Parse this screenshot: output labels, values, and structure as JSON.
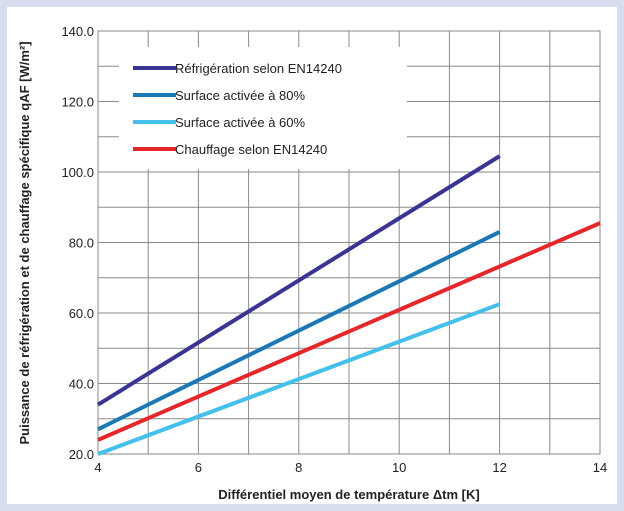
{
  "chart_data": {
    "type": "line",
    "xlabel": "Différentiel moyen de température  Δtm [K]",
    "ylabel": "Puissance de réfrigération et de chauffage spécifique  qAF [W/m²]",
    "xlim": [
      4,
      14
    ],
    "ylim": [
      20,
      140
    ],
    "x_ticks": [
      "4",
      "6",
      "8",
      "10",
      "12",
      "14"
    ],
    "y_ticks": [
      "20.0",
      "40.0",
      "60.0",
      "80.0",
      "100.0",
      "120.0",
      "140.0"
    ],
    "grid": true,
    "legend_position": "top-left",
    "series": [
      {
        "name": "Réfrigération selon EN14240",
        "color": "#3a3593",
        "x": [
          4,
          12
        ],
        "y": [
          34,
          104.5
        ]
      },
      {
        "name": "Surface activée à 80%",
        "color": "#1a79b4",
        "x": [
          4,
          12
        ],
        "y": [
          27,
          83
        ]
      },
      {
        "name": "Surface activée à 60%",
        "color": "#45c0ea",
        "x": [
          4,
          12
        ],
        "y": [
          20,
          62.5
        ]
      },
      {
        "name": "Chauffage selon EN14240",
        "color": "#e5272c",
        "x": [
          4,
          14
        ],
        "y": [
          24,
          85.5
        ]
      }
    ]
  }
}
